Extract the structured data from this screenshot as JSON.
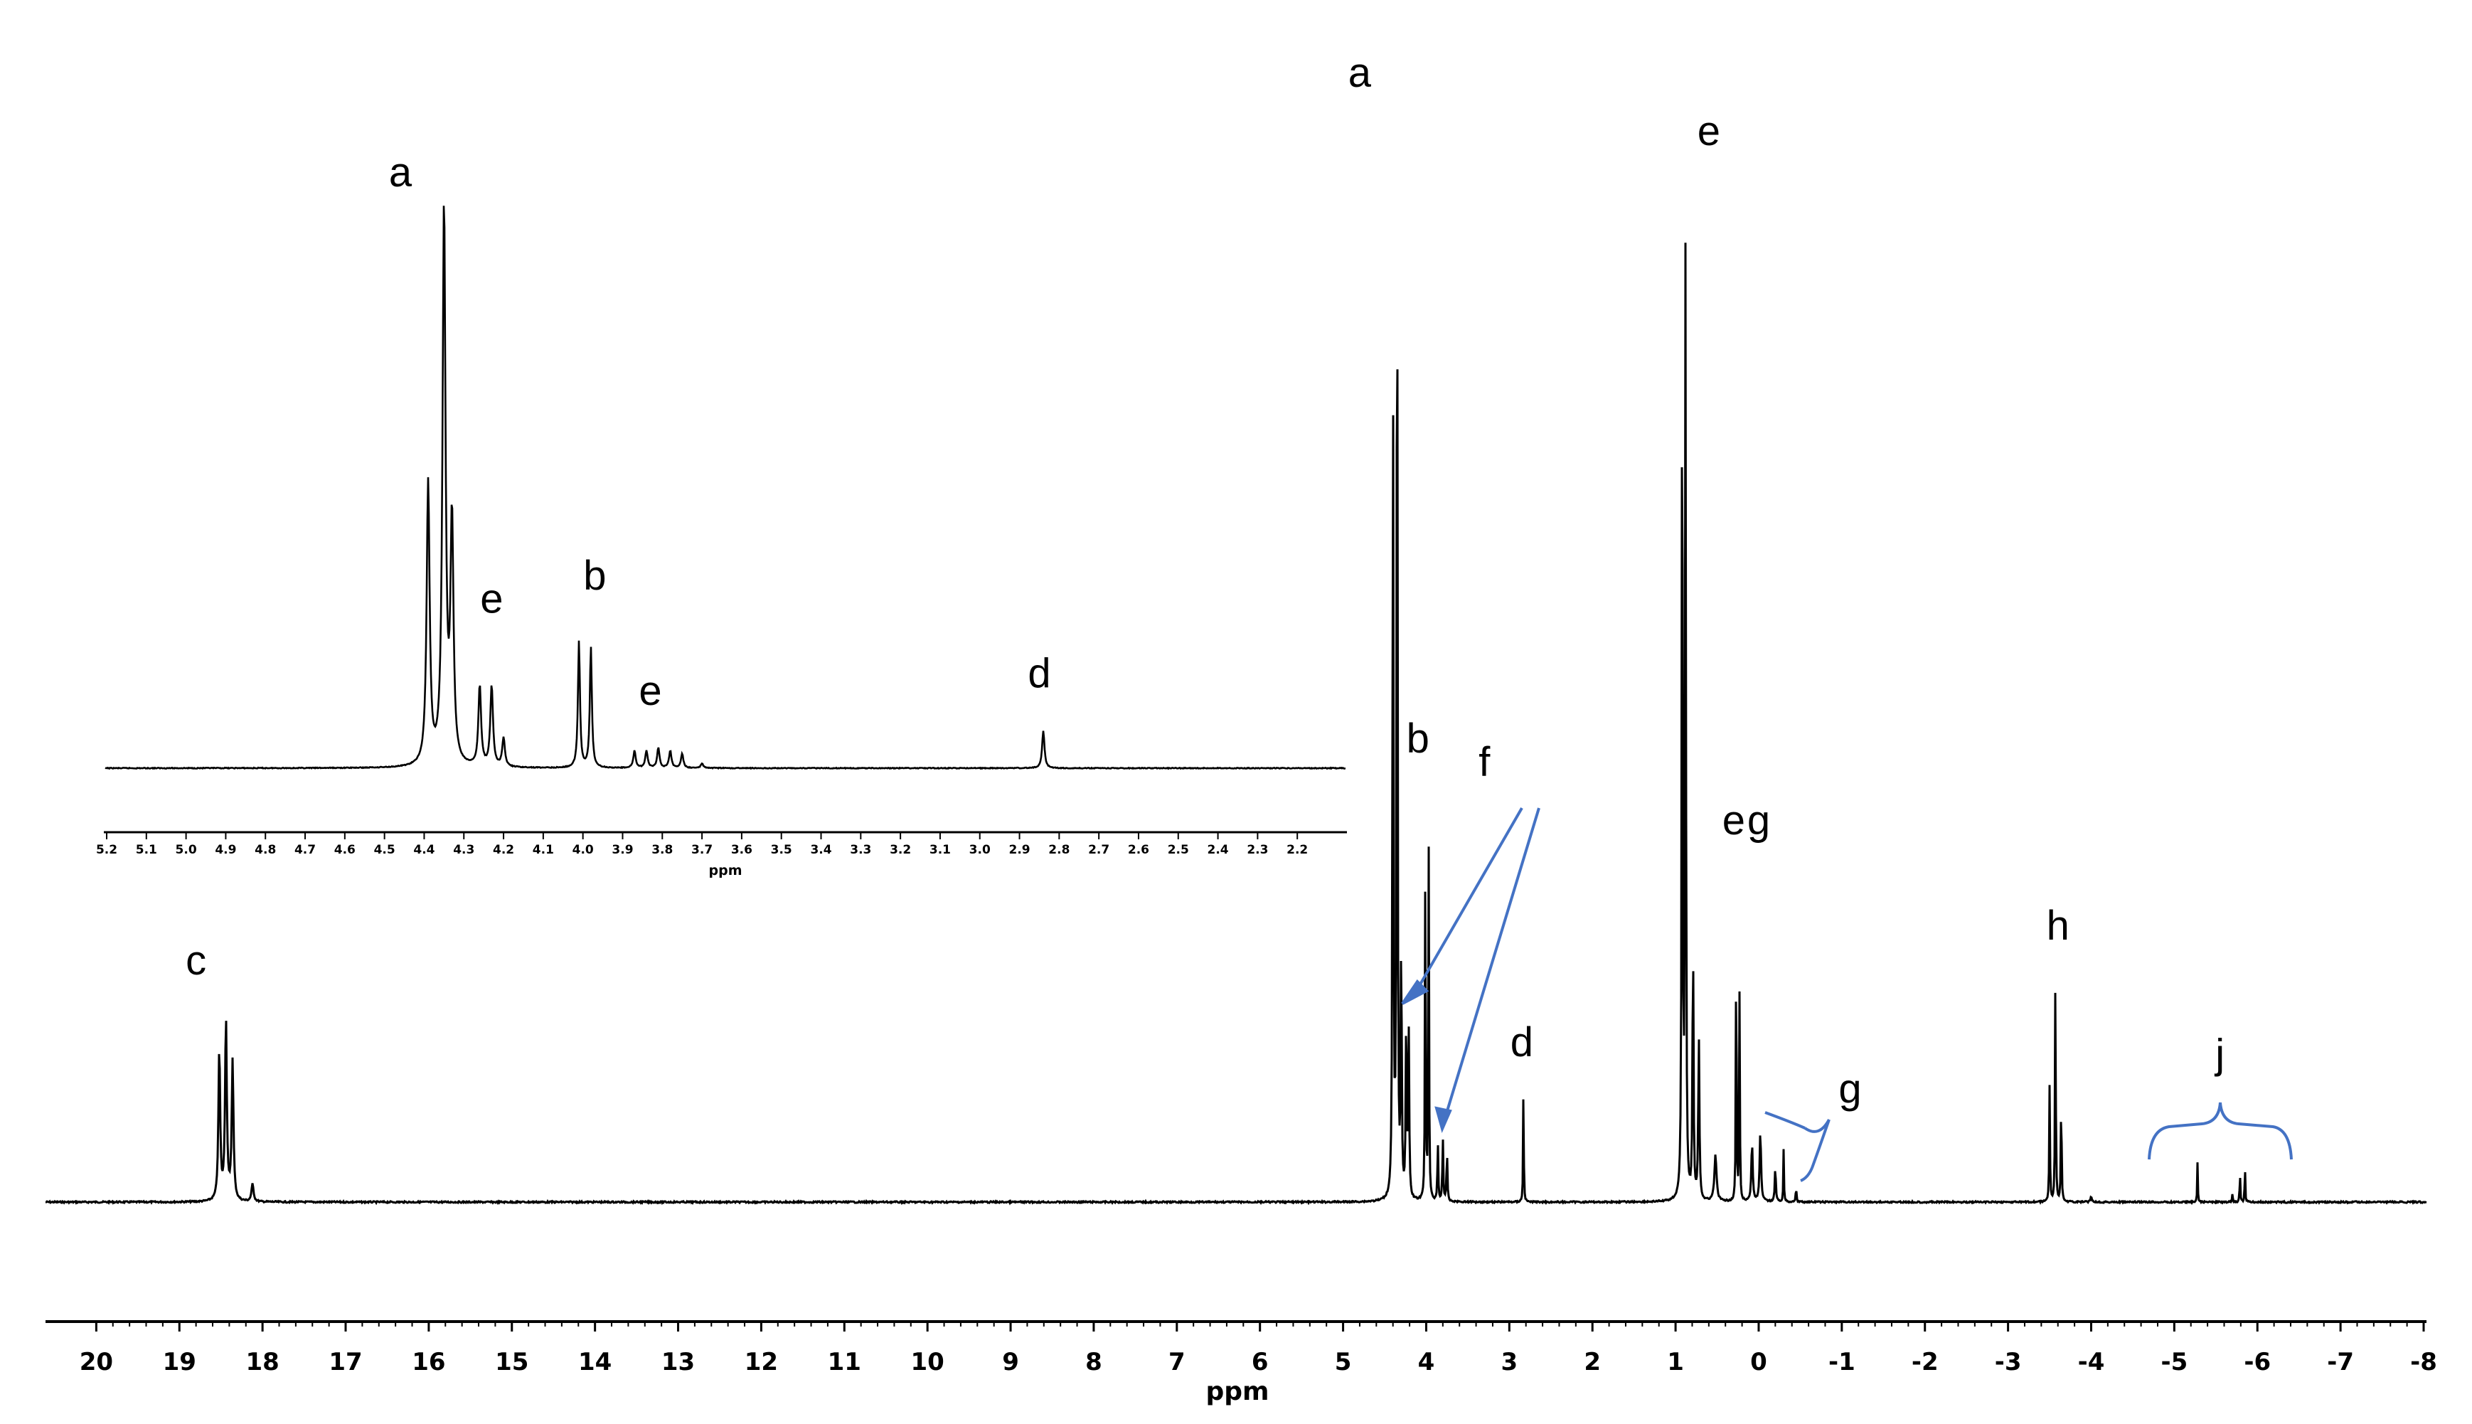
{
  "chart_data": [
    {
      "type": "line",
      "name": "main-spectrum",
      "xlabel": "ppm",
      "xlim": [
        20.2,
        -8.0
      ],
      "x_reversed": true,
      "x_ticks": [
        20,
        19,
        18,
        17,
        16,
        15,
        14,
        13,
        12,
        11,
        10,
        9,
        8,
        7,
        6,
        5,
        4,
        3,
        2,
        1,
        0,
        -1,
        -2,
        -3,
        -4,
        -5,
        -6,
        -7,
        -8
      ],
      "x_tick_labels": [
        "20",
        "19",
        "18",
        "17",
        "16",
        "15",
        "14",
        "13",
        "12",
        "11",
        "10",
        "9",
        "8",
        "7",
        "6",
        "5",
        "4",
        "3",
        "2",
        "1",
        "0",
        "-1",
        "-2",
        "-3",
        "-4",
        "-5",
        "-6",
        "-7",
        "-8"
      ],
      "ylim": [
        0,
        1.0
      ],
      "grid": false,
      "peaks": [
        {
          "ppm": 18.52,
          "height": 0.13,
          "width": 0.025
        },
        {
          "ppm": 18.44,
          "height": 0.155,
          "width": 0.025
        },
        {
          "ppm": 18.36,
          "height": 0.12,
          "width": 0.025
        },
        {
          "ppm": 18.12,
          "height": 0.015,
          "width": 0.03
        },
        {
          "ppm": 4.4,
          "height": 0.78,
          "width": 0.012
        },
        {
          "ppm": 4.35,
          "height": 1.0,
          "width": 0.012
        },
        {
          "ppm": 4.3,
          "height": 0.24,
          "width": 0.012
        },
        {
          "ppm": 4.24,
          "height": 0.16,
          "width": 0.014
        },
        {
          "ppm": 4.21,
          "height": 0.14,
          "width": 0.014
        },
        {
          "ppm": 4.01,
          "height": 0.32,
          "width": 0.01
        },
        {
          "ppm": 3.97,
          "height": 0.3,
          "width": 0.01
        },
        {
          "ppm": 3.86,
          "height": 0.05,
          "width": 0.012
        },
        {
          "ppm": 3.8,
          "height": 0.055,
          "width": 0.012
        },
        {
          "ppm": 3.75,
          "height": 0.045,
          "width": 0.012
        },
        {
          "ppm": 2.83,
          "height": 0.1,
          "width": 0.009
        },
        {
          "ppm": 0.92,
          "height": 0.85,
          "width": 0.012
        },
        {
          "ppm": 0.88,
          "height": 0.82,
          "width": 0.012
        },
        {
          "ppm": 0.79,
          "height": 0.23,
          "width": 0.014
        },
        {
          "ppm": 0.72,
          "height": 0.14,
          "width": 0.016
        },
        {
          "ppm": 0.52,
          "height": 0.04,
          "width": 0.03
        },
        {
          "ppm": 0.27,
          "height": 0.27,
          "width": 0.009
        },
        {
          "ppm": 0.23,
          "height": 0.18,
          "width": 0.009
        },
        {
          "ppm": 0.08,
          "height": 0.05,
          "width": 0.02
        },
        {
          "ppm": -0.02,
          "height": 0.06,
          "width": 0.02
        },
        {
          "ppm": -0.2,
          "height": 0.03,
          "width": 0.015
        },
        {
          "ppm": -0.3,
          "height": 0.045,
          "width": 0.009
        },
        {
          "ppm": -0.45,
          "height": 0.015,
          "width": 0.01
        },
        {
          "ppm": -3.5,
          "height": 0.1,
          "width": 0.01
        },
        {
          "ppm": -3.57,
          "height": 0.205,
          "width": 0.01
        },
        {
          "ppm": -3.64,
          "height": 0.1,
          "width": 0.01
        },
        {
          "ppm": -4.0,
          "height": 0.005,
          "width": 0.02
        },
        {
          "ppm": -5.28,
          "height": 0.035,
          "width": 0.008
        },
        {
          "ppm": -5.7,
          "height": 0.008,
          "width": 0.008
        },
        {
          "ppm": -5.79,
          "height": 0.03,
          "width": 0.008
        },
        {
          "ppm": -5.85,
          "height": 0.035,
          "width": 0.008
        }
      ],
      "annotations": [
        {
          "text": "a",
          "ppm": 4.8,
          "level": 0.95
        },
        {
          "text": "b",
          "ppm": 4.1,
          "level": 0.38
        },
        {
          "text": "c",
          "ppm": 18.8,
          "level": 0.19
        },
        {
          "text": "d",
          "ppm": 2.85,
          "level": 0.12
        },
        {
          "text": "e",
          "ppm": 0.6,
          "level": 0.9
        },
        {
          "text": "e",
          "ppm": 0.3,
          "level": 0.31
        },
        {
          "text": "f",
          "ppm": 3.3,
          "level": 0.36
        },
        {
          "text": "g",
          "ppm": 0.0,
          "level": 0.31
        },
        {
          "text": "g",
          "ppm": -1.1,
          "level": 0.08
        },
        {
          "text": "h",
          "ppm": -3.6,
          "level": 0.22
        },
        {
          "text": "j",
          "ppm": -5.55,
          "level": 0.11
        }
      ]
    },
    {
      "type": "line",
      "name": "inset-spectrum",
      "xlabel": "ppm",
      "xlim": [
        5.2,
        2.1
      ],
      "x_reversed": true,
      "x_ticks": [
        5.2,
        5.1,
        5.0,
        4.9,
        4.8,
        4.7,
        4.6,
        4.5,
        4.4,
        4.3,
        4.2,
        4.1,
        4.0,
        3.9,
        3.8,
        3.7,
        3.6,
        3.5,
        3.4,
        3.3,
        3.2,
        3.1,
        3.0,
        2.9,
        2.8,
        2.7,
        2.6,
        2.5,
        2.4,
        2.3,
        2.2
      ],
      "x_tick_labels": [
        "5.2",
        "5.1",
        "5.0",
        "4.9",
        "4.8",
        "4.7",
        "4.6",
        "4.5",
        "4.4",
        "4.3",
        "4.2",
        "4.1",
        "4.0",
        "3.9",
        "3.8",
        "3.7",
        "3.6",
        "3.5",
        "3.4",
        "3.3",
        "3.2",
        "3.1",
        "3.0",
        "2.9",
        "2.8",
        "2.7",
        "2.6",
        "2.5",
        "2.4",
        "2.3",
        "2.2"
      ],
      "ylim": [
        0,
        1.0
      ],
      "grid": false,
      "peaks": [
        {
          "ppm": 4.39,
          "height": 0.49,
          "width": 0.009
        },
        {
          "ppm": 4.35,
          "height": 0.97,
          "width": 0.009
        },
        {
          "ppm": 4.33,
          "height": 0.42,
          "width": 0.009
        },
        {
          "ppm": 4.26,
          "height": 0.14,
          "width": 0.008
        },
        {
          "ppm": 4.23,
          "height": 0.14,
          "width": 0.008
        },
        {
          "ppm": 4.2,
          "height": 0.05,
          "width": 0.008
        },
        {
          "ppm": 4.01,
          "height": 0.22,
          "width": 0.006
        },
        {
          "ppm": 3.98,
          "height": 0.21,
          "width": 0.006
        },
        {
          "ppm": 3.87,
          "height": 0.03,
          "width": 0.007
        },
        {
          "ppm": 3.84,
          "height": 0.03,
          "width": 0.007
        },
        {
          "ppm": 3.81,
          "height": 0.035,
          "width": 0.007
        },
        {
          "ppm": 3.78,
          "height": 0.03,
          "width": 0.007
        },
        {
          "ppm": 3.75,
          "height": 0.025,
          "width": 0.007
        },
        {
          "ppm": 3.7,
          "height": 0.008,
          "width": 0.007
        },
        {
          "ppm": 2.84,
          "height": 0.065,
          "width": 0.007
        }
      ],
      "annotations": [
        {
          "text": "a",
          "ppm": 4.46,
          "level": 1.0
        },
        {
          "text": "e",
          "ppm": 4.23,
          "level": 0.26
        },
        {
          "text": "b",
          "ppm": 3.97,
          "level": 0.3
        },
        {
          "text": "e",
          "ppm": 3.83,
          "level": 0.1
        },
        {
          "text": "d",
          "ppm": 2.85,
          "level": 0.13
        }
      ]
    }
  ],
  "style": {
    "spectrum_color": "#000000",
    "annotation_color": "#4472C4"
  }
}
